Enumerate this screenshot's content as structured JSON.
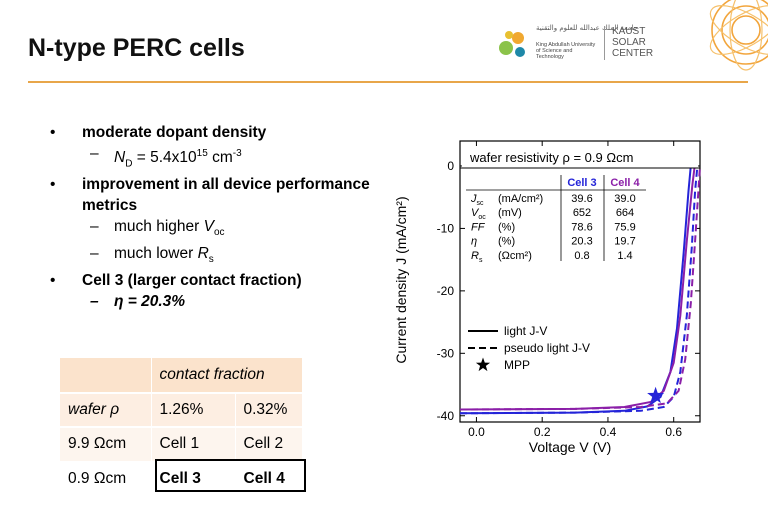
{
  "slide": {
    "title": "N-type PERC cells",
    "logo": {
      "arabic": "جامعة الملك عبدالله للعلوم والتقنية",
      "university": "King Abdullah University of Science and Technology",
      "center_line1": "KAUST",
      "center_line2": "SOLAR",
      "center_line3": "CENTER"
    }
  },
  "bullets": {
    "b1": "moderate dopant density",
    "b1_sub": {
      "sym": "N",
      "sub": "D",
      "eq": " = 5.4x10",
      "exp": "15",
      "unit": " cm",
      "unit_exp": "-3"
    },
    "b2": "improvement in all device performance metrics",
    "b2_sub1": {
      "pre": "much higher ",
      "sym": "V",
      "sub": "oc"
    },
    "b2_sub2": {
      "pre": "much lower ",
      "sym": "R",
      "sub": "s"
    },
    "b3": "Cell 3 (larger contact fraction)",
    "b3_sub": "η = 20.3%"
  },
  "contact_table": {
    "header": [
      "",
      "contact fraction",
      ""
    ],
    "rows": [
      [
        "wafer ρ",
        "1.26%",
        "0.32%"
      ],
      [
        "9.9 Ωcm",
        "Cell 1",
        "Cell 2"
      ],
      [
        "0.9 Ωcm",
        "Cell 3",
        "Cell 4"
      ]
    ]
  },
  "chart_data": {
    "type": "line",
    "title": "wafer resistivity ρ = 0.9 Ωcm",
    "xlabel": "Voltage V (V)",
    "ylabel": "Current density J (mA/cm²)",
    "xlim": [
      -0.05,
      0.68
    ],
    "ylim": [
      -41,
      4
    ],
    "xticks": [
      "0.0",
      "0.2",
      "0.4",
      "0.6"
    ],
    "yticks": [
      "0",
      "-10",
      "-20",
      "-30",
      "-40"
    ],
    "xtick_values": [
      0,
      0.2,
      0.4,
      0.6
    ],
    "ytick_values": [
      0,
      -10,
      -20,
      -30,
      -40
    ],
    "colors": {
      "cell3": "#2424d8",
      "cell4": "#8b1fa8"
    },
    "series": [
      {
        "name": "Cell 3",
        "style": "light J-V",
        "x": [
          -0.05,
          0.3,
          0.45,
          0.52,
          0.56,
          0.59,
          0.61,
          0.63,
          0.645,
          0.652
        ],
        "y": [
          -39.6,
          -39.5,
          -39.2,
          -38.5,
          -37.0,
          -33.0,
          -26.0,
          -14.0,
          -4.0,
          0.0
        ]
      },
      {
        "name": "Cell 4",
        "style": "light J-V",
        "x": [
          -0.05,
          0.3,
          0.45,
          0.53,
          0.57,
          0.6,
          0.62,
          0.64,
          0.657,
          0.664
        ],
        "y": [
          -39.0,
          -38.9,
          -38.6,
          -37.8,
          -36.0,
          -31.5,
          -24.0,
          -12.0,
          -3.0,
          0.0
        ]
      },
      {
        "name": "Cell 3",
        "style": "pseudo light J-V",
        "x": [
          -0.05,
          0.3,
          0.5,
          0.57,
          0.6,
          0.62,
          0.64,
          0.655,
          0.665,
          0.672
        ],
        "y": [
          -39.6,
          -39.5,
          -39.2,
          -38.6,
          -37.0,
          -33.0,
          -24.0,
          -13.0,
          -4.0,
          0.0
        ]
      },
      {
        "name": "Cell 4",
        "style": "pseudo light J-V",
        "x": [
          -0.05,
          0.3,
          0.5,
          0.58,
          0.615,
          0.635,
          0.652,
          0.665,
          0.675,
          0.68
        ],
        "y": [
          -39.0,
          -38.9,
          -38.6,
          -38.0,
          -36.0,
          -31.0,
          -22.0,
          -12.0,
          -4.0,
          0.0
        ]
      }
    ],
    "mpp": {
      "x": 0.545,
      "y": -36.8
    },
    "legend": [
      "light J-V",
      "pseudo light J-V",
      "MPP"
    ],
    "inset_table": {
      "header": [
        "",
        "Cell 3",
        "Cell 4"
      ],
      "rows": [
        {
          "param": "J",
          "sub": "sc",
          "unit": "(mA/cm²)",
          "c3": "39.6",
          "c4": "39.0"
        },
        {
          "param": "V",
          "sub": "oc",
          "unit": "(mV)",
          "c3": "652",
          "c4": "664"
        },
        {
          "param": "FF",
          "sub": "",
          "unit": "(%)",
          "c3": "78.6",
          "c4": "75.9"
        },
        {
          "param": "η",
          "sub": "",
          "unit": "(%)",
          "c3": "20.3",
          "c4": "19.7"
        },
        {
          "param": "R",
          "sub": "s",
          "unit": "(Ωcm²)",
          "c3": "0.8",
          "c4": "1.4"
        }
      ]
    }
  }
}
